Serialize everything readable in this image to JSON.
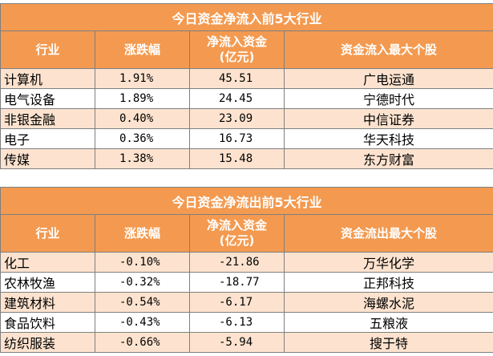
{
  "inflow": {
    "title": "今日资金净流入前5大行业",
    "headers": [
      "行业",
      "涨跌幅",
      "净流入资金\n(亿元)",
      "资金流入最大个股"
    ],
    "header_line1": "净流入资金",
    "header_line2": "(亿元)",
    "rows": [
      {
        "industry": "计算机",
        "change": "1.91%",
        "net": "45.51",
        "stock": "广电运通"
      },
      {
        "industry": "电气设备",
        "change": "1.89%",
        "net": "24.45",
        "stock": "宁德时代"
      },
      {
        "industry": "非银金融",
        "change": "0.40%",
        "net": "23.09",
        "stock": "中信证券"
      },
      {
        "industry": "电子",
        "change": "0.36%",
        "net": "16.73",
        "stock": "华天科技"
      },
      {
        "industry": "传媒",
        "change": "1.38%",
        "net": "15.48",
        "stock": "东方财富"
      }
    ],
    "col1": "行业",
    "col2": "涨跌幅",
    "col4": "资金流入最大个股"
  },
  "outflow": {
    "title": "今日资金净流出前5大行业",
    "header_line1": "净流入资金",
    "header_line2": "(亿元)",
    "col1": "行业",
    "col2": "涨跌幅",
    "col4": "资金流出最大个股",
    "rows": [
      {
        "industry": "化工",
        "change": "-0.10%",
        "net": "-21.86",
        "stock": "万华化学"
      },
      {
        "industry": "农林牧渔",
        "change": "-0.32%",
        "net": "-18.77",
        "stock": "正邦科技"
      },
      {
        "industry": "建筑材料",
        "change": "-0.54%",
        "net": "-6.17",
        "stock": "海螺水泥"
      },
      {
        "industry": "食品饮料",
        "change": "-0.43%",
        "net": "-6.13",
        "stock": "五粮液"
      },
      {
        "industry": "纺织服装",
        "change": "-0.66%",
        "net": "-5.94",
        "stock": "搜于特"
      }
    ]
  },
  "colors": {
    "header_bg": "#f39a50",
    "alt_row_bg": "#fde3cf",
    "border": "#7f7f7f"
  }
}
